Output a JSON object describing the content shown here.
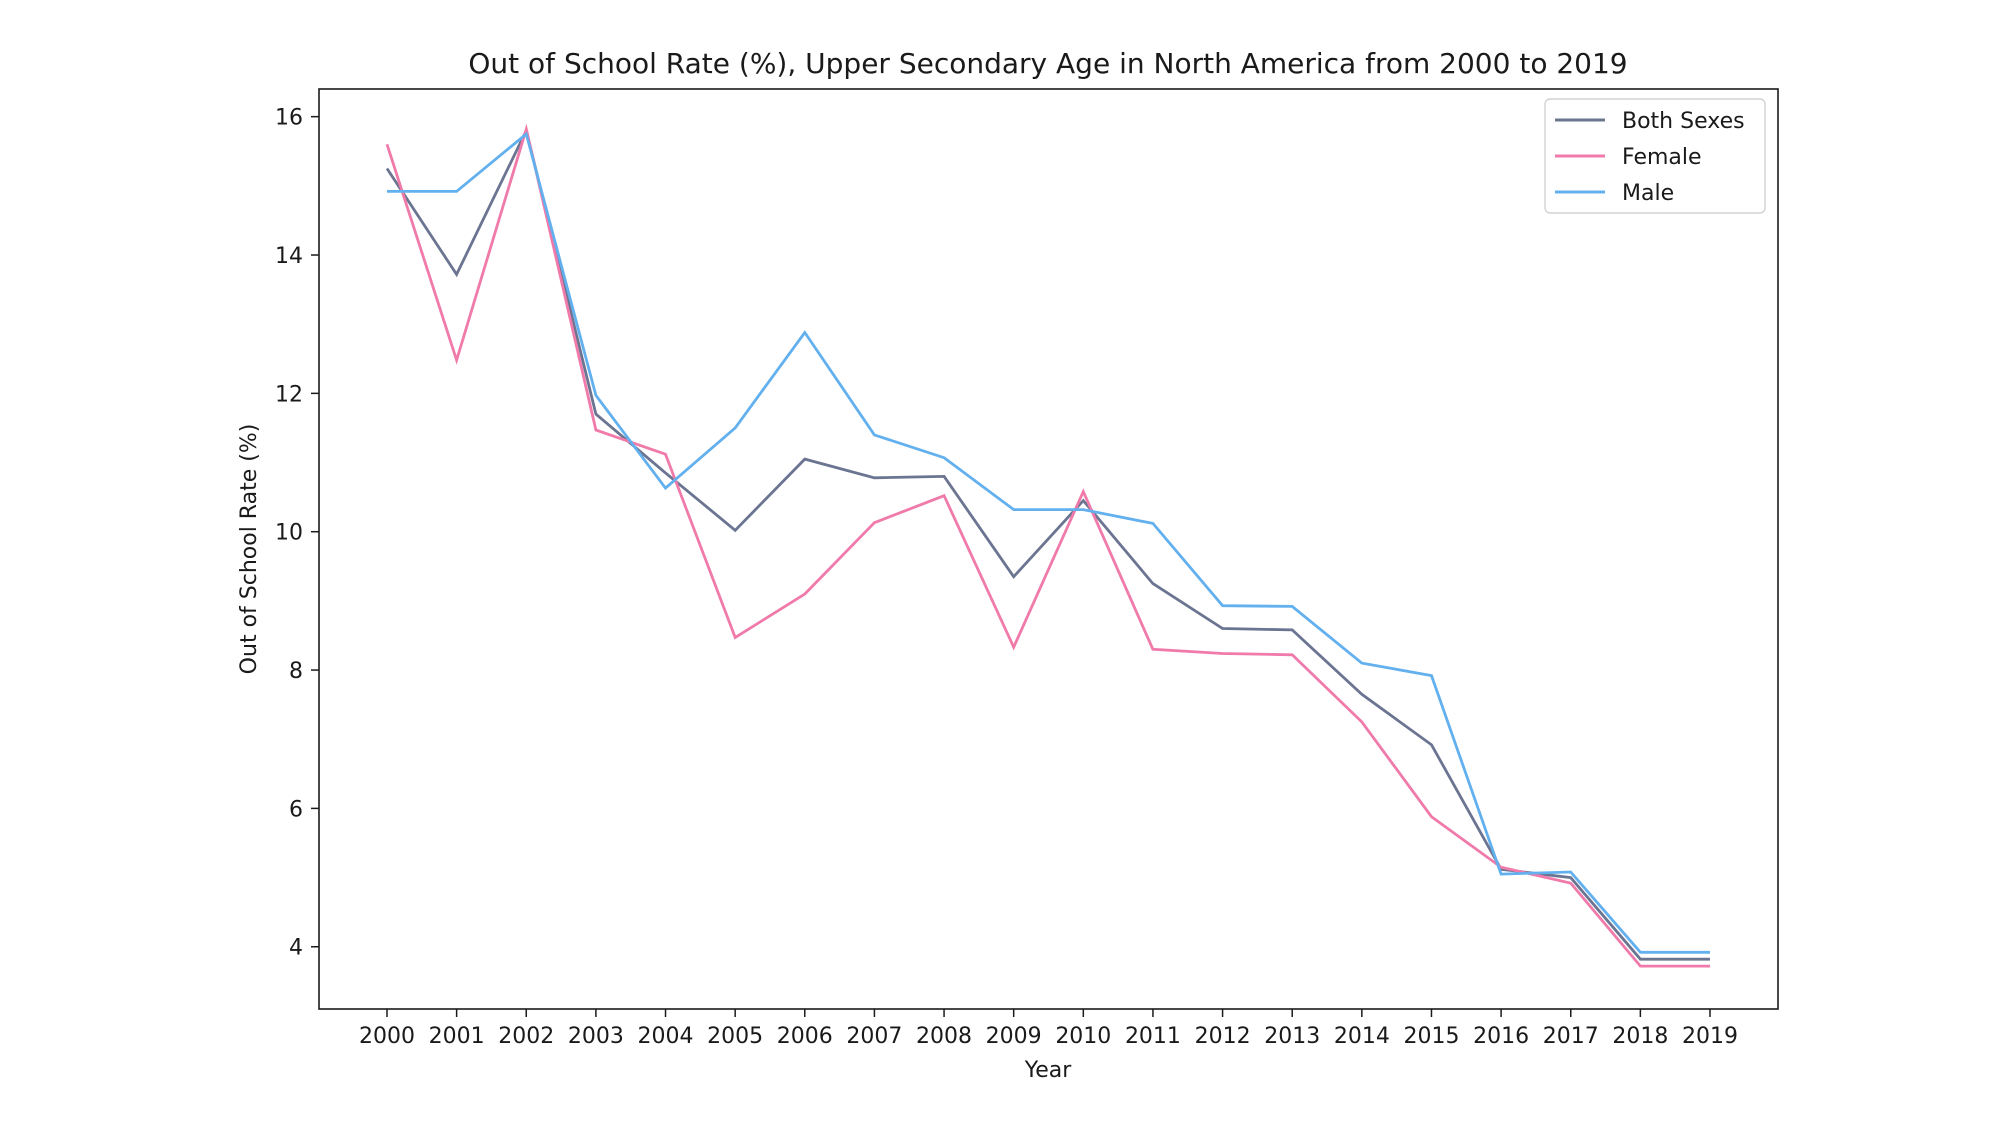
{
  "chart_data": {
    "type": "line",
    "title": "Out of School Rate (%), Upper Secondary Age in North America from 2000 to 2019",
    "xlabel": "Year",
    "ylabel": "Out of School Rate (%)",
    "x": [
      "2000",
      "2001",
      "2002",
      "2003",
      "2004",
      "2005",
      "2006",
      "2007",
      "2008",
      "2009",
      "2010",
      "2011",
      "2012",
      "2013",
      "2014",
      "2015",
      "2016",
      "2017",
      "2018",
      "2019"
    ],
    "ylim": [
      3.1,
      16.4
    ],
    "yticks": [
      "4",
      "6",
      "8",
      "10",
      "12",
      "14",
      "16"
    ],
    "grid": false,
    "legend_position": "top-right",
    "series": [
      {
        "name": "Both Sexes",
        "color": "#6b7591",
        "values": [
          15.25,
          13.72,
          15.8,
          11.7,
          10.85,
          10.02,
          11.05,
          10.78,
          10.8,
          9.35,
          10.45,
          9.25,
          8.6,
          8.58,
          7.65,
          6.92,
          5.12,
          5.0,
          3.82,
          3.82
        ]
      },
      {
        "name": "Female",
        "color": "#f07aaa",
        "values": [
          15.6,
          12.48,
          15.82,
          11.47,
          11.12,
          8.47,
          9.1,
          10.13,
          10.52,
          8.33,
          10.58,
          8.3,
          8.24,
          8.22,
          7.25,
          5.88,
          5.15,
          4.92,
          3.72,
          3.72
        ]
      },
      {
        "name": "Male",
        "color": "#63b0ef",
        "values": [
          14.92,
          14.92,
          15.75,
          11.97,
          10.63,
          11.5,
          12.88,
          11.4,
          11.07,
          10.32,
          10.32,
          10.12,
          8.93,
          8.92,
          8.1,
          7.92,
          5.05,
          5.08,
          3.92,
          3.92
        ]
      }
    ]
  }
}
